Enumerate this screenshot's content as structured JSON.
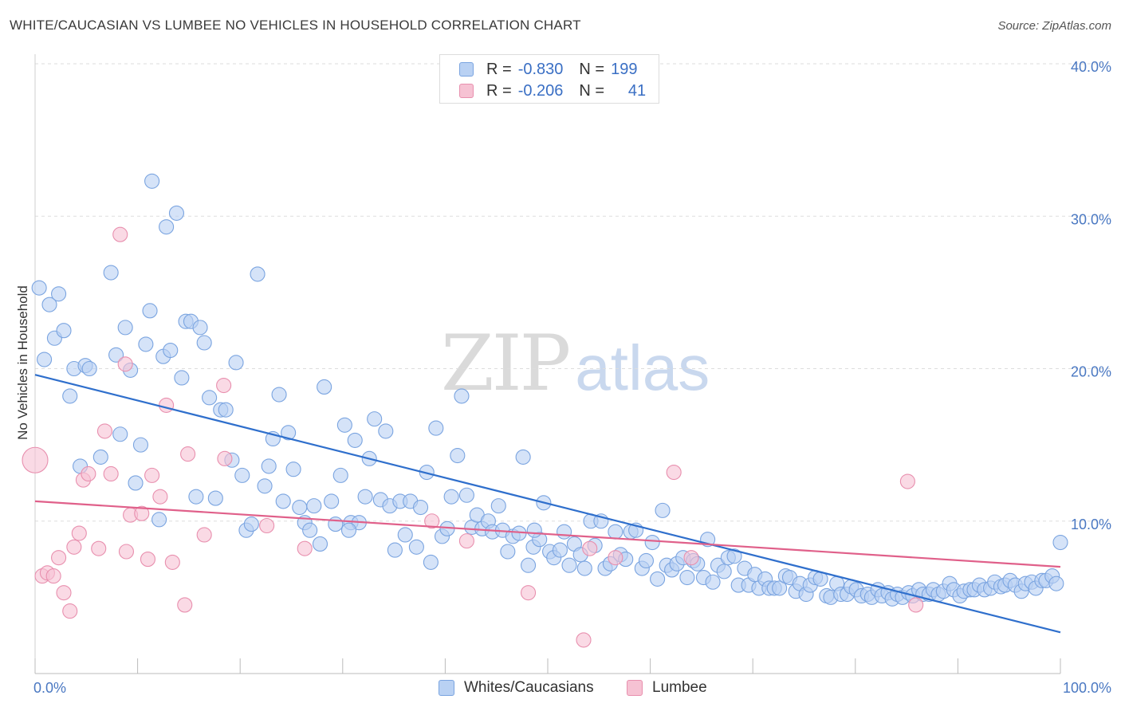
{
  "title": "WHITE/CAUCASIAN VS LUMBEE NO VEHICLES IN HOUSEHOLD CORRELATION CHART",
  "source": "Source: ZipAtlas.com",
  "watermark": {
    "zip": "ZIP",
    "atlas": "atlas"
  },
  "legend_top": [
    {
      "r_label": "R =",
      "r_value": "-0.830",
      "n_label": "N =",
      "n_value": "199"
    },
    {
      "r_label": "R =",
      "r_value": "-0.206",
      "n_label": "N =",
      "n_value": "41"
    }
  ],
  "legend_bottom": [
    {
      "label": "Whites/Caucasians"
    },
    {
      "label": "Lumbee"
    }
  ],
  "colors": {
    "blue_fill": "#b9d1f3",
    "blue_stroke": "#7aa4e0",
    "blue_line": "#2f6fcc",
    "pink_fill": "#f6c2d3",
    "pink_stroke": "#e88fae",
    "pink_line": "#e0608a",
    "grid": "#dddddd",
    "axis_text": "#4a78c2"
  },
  "chart_data": {
    "type": "scatter",
    "title": "WHITE/CAUCASIAN VS LUMBEE NO VEHICLES IN HOUSEHOLD CORRELATION CHART",
    "xlabel": "",
    "ylabel": "No Vehicles in Household",
    "xlim": [
      0,
      100
    ],
    "ylim": [
      0,
      40
    ],
    "x_ticks": [
      "0.0%",
      "100.0%"
    ],
    "y_ticks": [
      {
        "value": 10,
        "label": "10.0%"
      },
      {
        "value": 20,
        "label": "20.0%"
      },
      {
        "value": 30,
        "label": "30.0%"
      },
      {
        "value": 40,
        "label": "40.0%"
      }
    ],
    "grid": true,
    "legend_position": "top-center",
    "series": [
      {
        "name": "Whites/Caucasians",
        "r": -0.83,
        "n": 199,
        "trend": {
          "x": [
            0,
            100
          ],
          "y": [
            19.6,
            2.7
          ]
        },
        "points": [
          [
            0.4,
            25.3
          ],
          [
            0.9,
            20.6
          ],
          [
            1.4,
            24.2
          ],
          [
            1.9,
            22.0
          ],
          [
            2.3,
            24.9
          ],
          [
            2.8,
            22.5
          ],
          [
            3.4,
            18.2
          ],
          [
            3.8,
            20.0
          ],
          [
            4.4,
            13.6
          ],
          [
            4.9,
            20.2
          ],
          [
            5.3,
            20.0
          ],
          [
            6.4,
            14.2
          ],
          [
            7.4,
            26.3
          ],
          [
            7.9,
            20.9
          ],
          [
            8.3,
            15.7
          ],
          [
            8.8,
            22.7
          ],
          [
            9.3,
            19.9
          ],
          [
            9.8,
            12.5
          ],
          [
            10.3,
            15.0
          ],
          [
            10.8,
            21.6
          ],
          [
            11.2,
            23.8
          ],
          [
            11.4,
            32.3
          ],
          [
            12.1,
            10.1
          ],
          [
            12.5,
            20.8
          ],
          [
            12.8,
            29.3
          ],
          [
            13.2,
            21.2
          ],
          [
            13.8,
            30.2
          ],
          [
            14.3,
            19.4
          ],
          [
            14.7,
            23.1
          ],
          [
            15.2,
            23.1
          ],
          [
            15.7,
            11.6
          ],
          [
            16.1,
            22.7
          ],
          [
            16.5,
            21.7
          ],
          [
            17.0,
            18.1
          ],
          [
            17.6,
            11.5
          ],
          [
            18.1,
            17.3
          ],
          [
            18.6,
            17.3
          ],
          [
            19.2,
            14.0
          ],
          [
            19.6,
            20.4
          ],
          [
            20.2,
            13.0
          ],
          [
            20.6,
            9.4
          ],
          [
            21.1,
            9.8
          ],
          [
            21.7,
            26.2
          ],
          [
            22.4,
            12.3
          ],
          [
            22.8,
            13.6
          ],
          [
            23.2,
            15.4
          ],
          [
            23.8,
            18.3
          ],
          [
            24.2,
            11.3
          ],
          [
            24.7,
            15.8
          ],
          [
            25.2,
            13.4
          ],
          [
            25.8,
            10.9
          ],
          [
            26.3,
            9.9
          ],
          [
            26.8,
            9.4
          ],
          [
            27.2,
            11.0
          ],
          [
            27.8,
            8.5
          ],
          [
            28.2,
            18.8
          ],
          [
            28.9,
            11.3
          ],
          [
            29.3,
            9.8
          ],
          [
            29.8,
            13.0
          ],
          [
            30.2,
            16.3
          ],
          [
            30.8,
            9.9
          ],
          [
            31.2,
            15.3
          ],
          [
            31.6,
            9.9
          ],
          [
            32.2,
            11.6
          ],
          [
            32.6,
            14.1
          ],
          [
            33.1,
            16.7
          ],
          [
            33.7,
            11.4
          ],
          [
            34.2,
            15.9
          ],
          [
            34.6,
            11.0
          ],
          [
            35.1,
            8.1
          ],
          [
            35.6,
            11.3
          ],
          [
            36.1,
            9.1
          ],
          [
            36.6,
            11.3
          ],
          [
            37.2,
            8.3
          ],
          [
            37.6,
            10.9
          ],
          [
            38.2,
            13.2
          ],
          [
            38.6,
            7.3
          ],
          [
            39.1,
            16.1
          ],
          [
            39.7,
            9.0
          ],
          [
            40.2,
            9.5
          ],
          [
            40.6,
            11.6
          ],
          [
            41.2,
            14.3
          ],
          [
            41.6,
            18.2
          ],
          [
            42.1,
            11.7
          ],
          [
            42.6,
            9.6
          ],
          [
            43.1,
            10.4
          ],
          [
            43.6,
            9.5
          ],
          [
            44.2,
            10.0
          ],
          [
            44.6,
            9.3
          ],
          [
            45.2,
            11.0
          ],
          [
            45.6,
            9.4
          ],
          [
            46.1,
            8.0
          ],
          [
            46.6,
            9.0
          ],
          [
            47.2,
            9.2
          ],
          [
            47.6,
            14.2
          ],
          [
            48.1,
            7.1
          ],
          [
            48.6,
            8.3
          ],
          [
            49.2,
            8.8
          ],
          [
            49.6,
            11.2
          ],
          [
            50.2,
            8.0
          ],
          [
            50.6,
            7.6
          ],
          [
            51.2,
            8.1
          ],
          [
            51.6,
            9.3
          ],
          [
            52.1,
            7.1
          ],
          [
            52.6,
            8.5
          ],
          [
            53.2,
            7.8
          ],
          [
            53.6,
            6.9
          ],
          [
            54.2,
            10.0
          ],
          [
            54.6,
            8.4
          ],
          [
            55.2,
            10.0
          ],
          [
            55.6,
            6.9
          ],
          [
            56.1,
            7.2
          ],
          [
            56.6,
            9.3
          ],
          [
            57.1,
            7.8
          ],
          [
            57.6,
            7.5
          ],
          [
            58.1,
            9.3
          ],
          [
            58.6,
            9.4
          ],
          [
            59.2,
            6.9
          ],
          [
            59.6,
            7.4
          ],
          [
            60.2,
            8.6
          ],
          [
            60.7,
            6.2
          ],
          [
            61.2,
            10.7
          ],
          [
            61.6,
            7.1
          ],
          [
            62.1,
            6.8
          ],
          [
            62.6,
            7.2
          ],
          [
            63.2,
            7.6
          ],
          [
            63.6,
            6.3
          ],
          [
            64.2,
            7.4
          ],
          [
            64.6,
            7.2
          ],
          [
            65.2,
            6.3
          ],
          [
            65.6,
            8.8
          ],
          [
            66.1,
            6.0
          ],
          [
            66.6,
            7.1
          ],
          [
            67.2,
            6.7
          ],
          [
            67.6,
            7.6
          ],
          [
            68.2,
            7.7
          ],
          [
            68.6,
            5.8
          ],
          [
            69.2,
            6.9
          ],
          [
            69.6,
            5.8
          ],
          [
            70.2,
            6.5
          ],
          [
            70.6,
            5.6
          ],
          [
            71.2,
            6.2
          ],
          [
            71.6,
            5.6
          ],
          [
            72.1,
            5.6
          ],
          [
            72.6,
            5.6
          ],
          [
            73.2,
            6.4
          ],
          [
            73.6,
            6.3
          ],
          [
            74.2,
            5.4
          ],
          [
            74.6,
            5.9
          ],
          [
            75.2,
            5.2
          ],
          [
            75.6,
            5.8
          ],
          [
            76.1,
            6.3
          ],
          [
            76.6,
            6.2
          ],
          [
            77.2,
            5.1
          ],
          [
            77.6,
            5.0
          ],
          [
            78.2,
            5.9
          ],
          [
            78.6,
            5.2
          ],
          [
            79.2,
            5.2
          ],
          [
            79.6,
            5.7
          ],
          [
            80.1,
            5.5
          ],
          [
            80.6,
            5.1
          ],
          [
            81.2,
            5.2
          ],
          [
            81.6,
            5.0
          ],
          [
            82.2,
            5.5
          ],
          [
            82.6,
            5.1
          ],
          [
            83.2,
            5.3
          ],
          [
            83.6,
            4.9
          ],
          [
            84.1,
            5.2
          ],
          [
            84.6,
            5.0
          ],
          [
            85.2,
            5.3
          ],
          [
            85.6,
            5.1
          ],
          [
            86.2,
            5.5
          ],
          [
            86.6,
            5.2
          ],
          [
            87.2,
            5.2
          ],
          [
            87.6,
            5.5
          ],
          [
            88.1,
            5.2
          ],
          [
            88.6,
            5.4
          ],
          [
            89.2,
            5.9
          ],
          [
            89.6,
            5.5
          ],
          [
            90.2,
            5.1
          ],
          [
            90.6,
            5.4
          ],
          [
            91.2,
            5.5
          ],
          [
            91.6,
            5.5
          ],
          [
            92.1,
            5.8
          ],
          [
            92.6,
            5.5
          ],
          [
            93.2,
            5.6
          ],
          [
            93.6,
            6.0
          ],
          [
            94.2,
            5.7
          ],
          [
            94.6,
            5.8
          ],
          [
            95.1,
            6.1
          ],
          [
            95.6,
            5.8
          ],
          [
            96.2,
            5.4
          ],
          [
            96.6,
            5.9
          ],
          [
            97.2,
            6.0
          ],
          [
            97.6,
            5.6
          ],
          [
            98.2,
            6.1
          ],
          [
            98.6,
            6.1
          ],
          [
            99.2,
            6.4
          ],
          [
            99.6,
            5.9
          ],
          [
            100.0,
            8.6
          ],
          [
            48.7,
            9.4
          ],
          [
            30.6,
            9.4
          ]
        ]
      },
      {
        "name": "Lumbee",
        "r": -0.206,
        "n": 41,
        "trend": {
          "x": [
            0,
            100
          ],
          "y": [
            11.3,
            7.0
          ]
        },
        "points": [
          [
            0.0,
            14.0
          ],
          [
            0.7,
            6.4
          ],
          [
            1.2,
            6.6
          ],
          [
            1.8,
            6.4
          ],
          [
            2.3,
            7.6
          ],
          [
            2.8,
            5.3
          ],
          [
            3.4,
            4.1
          ],
          [
            3.8,
            8.3
          ],
          [
            4.3,
            9.2
          ],
          [
            4.7,
            12.7
          ],
          [
            5.2,
            13.1
          ],
          [
            6.2,
            8.2
          ],
          [
            6.8,
            15.9
          ],
          [
            7.4,
            13.1
          ],
          [
            8.3,
            28.8
          ],
          [
            8.8,
            20.3
          ],
          [
            8.9,
            8.0
          ],
          [
            9.3,
            10.4
          ],
          [
            10.4,
            10.5
          ],
          [
            11.0,
            7.5
          ],
          [
            11.4,
            13.0
          ],
          [
            12.2,
            11.6
          ],
          [
            12.8,
            17.6
          ],
          [
            13.4,
            7.3
          ],
          [
            14.6,
            4.5
          ],
          [
            14.9,
            14.4
          ],
          [
            16.5,
            9.1
          ],
          [
            18.4,
            18.9
          ],
          [
            18.5,
            14.1
          ],
          [
            22.6,
            9.7
          ],
          [
            26.3,
            8.2
          ],
          [
            38.7,
            10.0
          ],
          [
            42.1,
            8.7
          ],
          [
            48.1,
            5.3
          ],
          [
            53.5,
            2.2
          ],
          [
            54.1,
            8.2
          ],
          [
            56.6,
            7.6
          ],
          [
            62.3,
            13.2
          ],
          [
            64.0,
            7.6
          ],
          [
            85.1,
            12.6
          ],
          [
            85.9,
            4.5
          ]
        ]
      }
    ]
  }
}
